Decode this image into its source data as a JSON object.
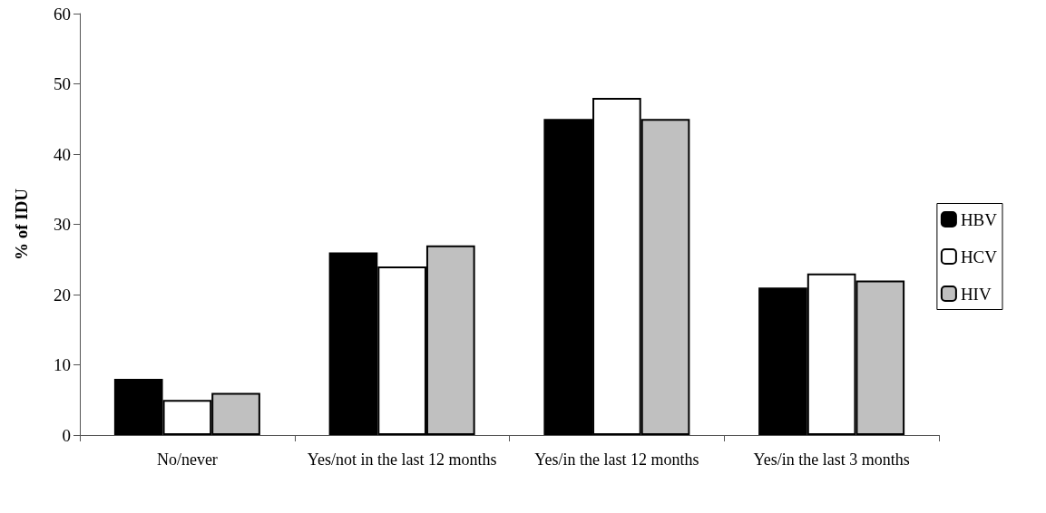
{
  "chart_data": {
    "type": "bar",
    "ylabel": "% of IDU",
    "categories": [
      "No/never",
      "Yes/not in the last 12 months",
      "Yes/in the last 12 months",
      "Yes/in the last 3 months"
    ],
    "series": [
      {
        "name": "HBV",
        "color": "#000000",
        "values": [
          8,
          26,
          45,
          21
        ]
      },
      {
        "name": "HCV",
        "color": "#ffffff",
        "values": [
          5,
          24,
          48,
          23
        ]
      },
      {
        "name": "HIV",
        "color": "#c0c0c0",
        "values": [
          6,
          27,
          45,
          22
        ]
      }
    ],
    "ylim": [
      0,
      60
    ],
    "yticks": [
      0,
      10,
      20,
      30,
      40,
      50,
      60
    ],
    "grid": false,
    "legend": "right"
  }
}
